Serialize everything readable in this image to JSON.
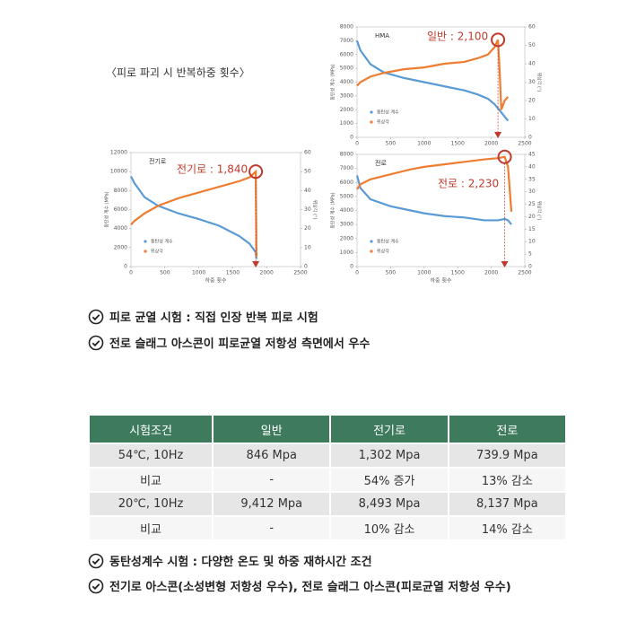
{
  "heading": "〈피로 파괴 시 반복하중 횟수〉",
  "chart_data": [
    {
      "type": "line",
      "title": "HMA",
      "annotation": "일반 : 2,100",
      "ylabel": "동탄성 계수 (MPa)",
      "y2label": "위상각 (°)",
      "x": [
        0,
        50,
        200,
        400,
        700,
        1000,
        1300,
        1600,
        1800,
        1950,
        2050,
        2100,
        2120,
        2150,
        2200,
        2250
      ],
      "xlim": [
        0,
        2500
      ],
      "xticks": [
        0,
        500,
        1000,
        1500,
        2000,
        2500
      ],
      "ylim": [
        0,
        8000
      ],
      "yticks": [
        0,
        1000,
        2000,
        3000,
        4000,
        5000,
        6000,
        7000,
        8000
      ],
      "y2lim": [
        0,
        60
      ],
      "y2ticks": [
        0,
        10,
        20,
        30,
        40,
        50,
        60
      ],
      "legend": "lower left",
      "series": [
        {
          "name": "동탄성 계수",
          "color": "#5b9bd5",
          "values": [
            7000,
            6300,
            5300,
            4700,
            4300,
            4000,
            3700,
            3400,
            3100,
            2800,
            2400,
            2100,
            2000,
            1800,
            1500,
            1200
          ]
        },
        {
          "name": "위상각",
          "color": "#ed7d31",
          "axis": "y2",
          "values": [
            28,
            30,
            33,
            35,
            37,
            38,
            40,
            41,
            43,
            45,
            49,
            53,
            40,
            15,
            20,
            22
          ]
        }
      ]
    },
    {
      "type": "line",
      "title": "전기로",
      "annotation": "전기로 : 1,840",
      "xlabel": "하중 횟수",
      "ylabel": "동탄성 계수 (MPa)",
      "y2label": "위상각 (°)",
      "x": [
        0,
        50,
        200,
        400,
        700,
        1000,
        1300,
        1600,
        1750,
        1840,
        1850
      ],
      "xlim": [
        0,
        2500
      ],
      "xticks": [
        0,
        500,
        1000,
        1500,
        2000,
        2500
      ],
      "ylim": [
        0,
        12000
      ],
      "yticks": [
        0,
        2000,
        4000,
        6000,
        8000,
        10000,
        12000
      ],
      "y2lim": [
        0,
        60
      ],
      "y2ticks": [
        0,
        10,
        20,
        30,
        40,
        50,
        60
      ],
      "legend": "lower left",
      "series": [
        {
          "name": "동탄성 계수",
          "color": "#5b9bd5",
          "values": [
            9500,
            8800,
            7300,
            6400,
            5600,
            5000,
            4300,
            3200,
            2400,
            1500,
            800
          ]
        },
        {
          "name": "위상각",
          "color": "#ed7d31",
          "axis": "y2",
          "values": [
            22,
            24,
            28,
            32,
            36,
            39,
            42,
            45,
            47,
            50,
            5
          ]
        }
      ]
    },
    {
      "type": "line",
      "title": "전로",
      "annotation": "전로 : 2,230",
      "xlabel": "하중 횟수",
      "ylabel": "동탄성 계수 (MPa)",
      "y2label": "위상각 (°)",
      "x": [
        0,
        50,
        200,
        500,
        800,
        1000,
        1300,
        1600,
        1900,
        2100,
        2200,
        2250,
        2300
      ],
      "xlim": [
        0,
        2500
      ],
      "xticks": [
        0,
        500,
        1000,
        1500,
        2000,
        2500
      ],
      "ylim": [
        0,
        8000
      ],
      "yticks": [
        0,
        1000,
        2000,
        3000,
        4000,
        5000,
        6000,
        7000,
        8000
      ],
      "y2lim": [
        0,
        45
      ],
      "y2ticks": [
        0,
        5,
        10,
        15,
        20,
        25,
        30,
        35,
        40,
        45
      ],
      "legend": "lower left",
      "series": [
        {
          "name": "동탄성 계수",
          "color": "#5b9bd5",
          "values": [
            6500,
            5600,
            4800,
            4300,
            4000,
            3800,
            3600,
            3500,
            3300,
            3300,
            3400,
            3300,
            3000
          ]
        },
        {
          "name": "위상각",
          "color": "#ed7d31",
          "axis": "y2",
          "values": [
            31,
            33,
            35,
            37,
            39,
            40,
            41,
            42,
            43,
            43.5,
            44,
            40,
            22
          ]
        }
      ]
    }
  ],
  "bullets": [
    "피로 균열 시험 : 직접 인장 반복 피로 시험",
    "전로 슬래그 아스콘이 피로균열 저항성 측면에서 우수"
  ],
  "table": {
    "header": [
      "시험조건",
      "일반",
      "전기로",
      "전로"
    ],
    "rows": [
      [
        "54℃, 10Hz",
        "846 Mpa",
        "1,302 Mpa",
        "739.9 Mpa"
      ],
      [
        "비교",
        "-",
        "54% 증가",
        "13% 감소"
      ],
      [
        "20℃, 10Hz",
        "9,412 Mpa",
        "8,493 Mpa",
        "8,137 Mpa"
      ],
      [
        "비교",
        "-",
        "10% 감소",
        "14% 감소"
      ]
    ]
  },
  "bullets2": [
    "동탄성계수 시험 : 다양한 온도 및 하중 재하시간 조건",
    "전기로 아스콘(소성변형 저항성 우수), 전로 슬래그 아스콘(피로균열 저항성 우수)"
  ]
}
